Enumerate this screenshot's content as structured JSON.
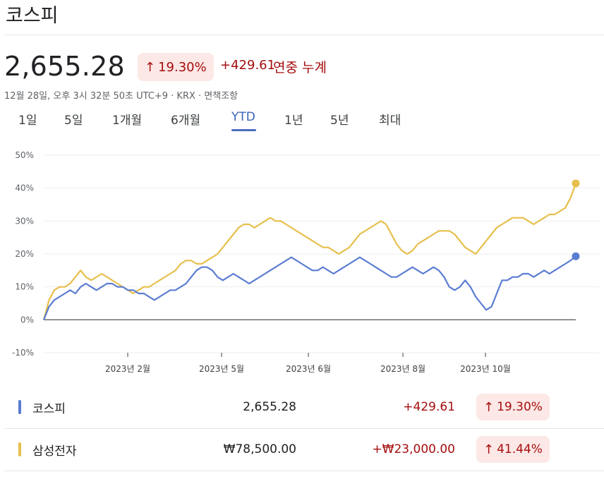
{
  "header": {
    "title": "코스피",
    "price": "2,655.28",
    "pct_change": "19.30%",
    "abs_change": "+429.61",
    "period_label": "연중 누계",
    "subline": "12월 28일, 오후 3시 32분 50초 UTC+9 · KRX · 면책조항"
  },
  "tabs": [
    {
      "label": "1일"
    },
    {
      "label": "5일"
    },
    {
      "label": "1개월"
    },
    {
      "label": "6개월"
    },
    {
      "label": "YTD"
    },
    {
      "label": "1년"
    },
    {
      "label": "5년"
    },
    {
      "label": "최대"
    }
  ],
  "active_tab": "YTD",
  "colors": {
    "kospi": "#5a7cd2",
    "samsung": "#e6bf4c",
    "negative_text": "#a50e0e",
    "badge_bg": "#fce8e6",
    "grid": "#eeeeee"
  },
  "chart_data": {
    "type": "line",
    "x_ticks": [
      "2023년 2월",
      "2023년 5월",
      "2023년 6월",
      "2023년 8월",
      "2023년 10월"
    ],
    "y_ticks": [
      "50%",
      "40%",
      "30%",
      "20%",
      "10%",
      "0%",
      "-10%"
    ],
    "ylim": [
      -10,
      50
    ],
    "series": [
      {
        "name": "코스피",
        "values": [
          0,
          4,
          6,
          7,
          8,
          9,
          8,
          10,
          11,
          10,
          9,
          10,
          11,
          11,
          10,
          10,
          9,
          9,
          8,
          8,
          7,
          6,
          7,
          8,
          9,
          9,
          10,
          11,
          13,
          15,
          16,
          16,
          15,
          13,
          12,
          13,
          14,
          13,
          12,
          11,
          12,
          13,
          14,
          15,
          16,
          17,
          18,
          19,
          18,
          17,
          16,
          15,
          15,
          16,
          15,
          14,
          15,
          16,
          17,
          18,
          19,
          18,
          17,
          16,
          15,
          14,
          13,
          13,
          14,
          15,
          16,
          15,
          14,
          15,
          16,
          15,
          13,
          10,
          9,
          10,
          12,
          10,
          7,
          5,
          3,
          4,
          8,
          12,
          12,
          13,
          13,
          14,
          14,
          13,
          14,
          15,
          14,
          15,
          16,
          17,
          18,
          19.3
        ]
      },
      {
        "name": "삼성전자",
        "values": [
          0,
          6,
          9,
          10,
          10,
          11,
          13,
          15,
          13,
          12,
          13,
          14,
          13,
          12,
          11,
          10,
          9,
          8,
          9,
          10,
          10,
          11,
          12,
          13,
          14,
          15,
          17,
          18,
          18,
          17,
          17,
          18,
          19,
          20,
          22,
          24,
          26,
          28,
          29,
          29,
          28,
          29,
          30,
          31,
          30,
          30,
          29,
          28,
          27,
          26,
          25,
          24,
          23,
          22,
          22,
          21,
          20,
          21,
          22,
          24,
          26,
          27,
          28,
          29,
          30,
          29,
          26,
          23,
          21,
          20,
          21,
          23,
          24,
          25,
          26,
          27,
          27,
          27,
          26,
          24,
          22,
          21,
          20,
          22,
          24,
          26,
          28,
          29,
          30,
          31,
          31,
          31,
          30,
          29,
          30,
          31,
          32,
          32,
          33,
          34,
          37,
          41.44
        ]
      }
    ]
  },
  "legend": [
    {
      "name": "코스피",
      "value": "2,655.28",
      "change": "+429.61",
      "pct": "19.30%"
    },
    {
      "name": "삼성전자",
      "value": "₩78,500.00",
      "change": "+₩23,000.00",
      "pct": "41.44%"
    }
  ]
}
